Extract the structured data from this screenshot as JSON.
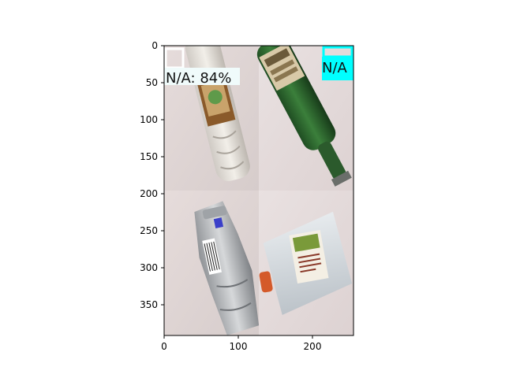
{
  "figure": {
    "x_axis": {
      "ticks": [
        "0",
        "100",
        "200"
      ]
    },
    "y_axis": {
      "ticks": [
        "0",
        "50",
        "100",
        "150",
        "200",
        "250",
        "300",
        "350"
      ]
    },
    "image_extent": {
      "width": 256,
      "height": 392
    },
    "detections": [
      {
        "label": "N/A: 84%",
        "box_color": "#ffffff",
        "tile": "top-left"
      },
      {
        "label": "N/A",
        "box_color": "#00ffff",
        "tile": "top-right"
      }
    ],
    "tiles": [
      {
        "name": "tile-clear-plastic-bottle",
        "subject": "clear plastic bottle"
      },
      {
        "name": "tile-green-glass-bottle",
        "subject": "green glass bottle"
      },
      {
        "name": "tile-crushed-plastic-bottle",
        "subject": "crushed plastic bottle"
      },
      {
        "name": "tile-plastic-jug",
        "subject": "plastic jug"
      }
    ]
  }
}
